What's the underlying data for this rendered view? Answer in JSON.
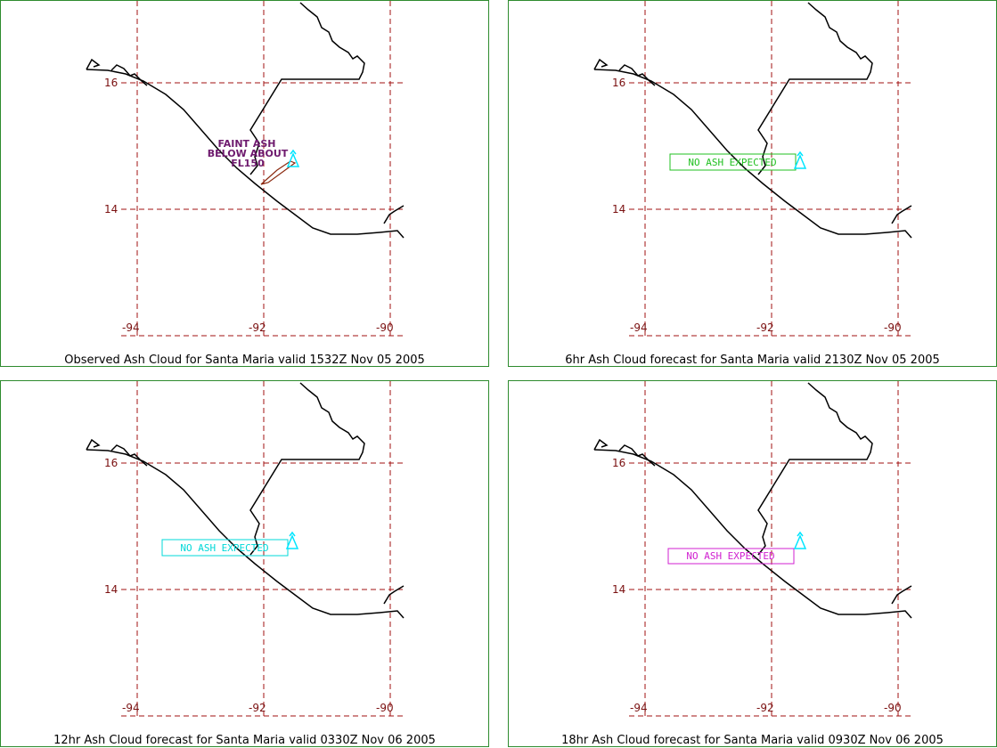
{
  "panels": [
    {
      "caption": "Observed Ash Cloud for Santa  Maria valid 1532Z Nov 05 2005",
      "annotation_lines": [
        "FAINT ASH",
        "BELOW ABOUT",
        "FL150"
      ],
      "annotation_color": "#6e1a6e",
      "volcano_color": "#00e5ff",
      "ash_polygon_color": "#8b2a10"
    },
    {
      "caption": "6hr Ash Cloud forecast for Santa  Maria valid 2130Z Nov 05 2005",
      "box_text": "NO ASH EXPECTED",
      "box_color": "#22c022",
      "volcano_color": "#00e5ff"
    },
    {
      "caption": "12hr Ash Cloud forecast for Santa  Maria valid 0330Z Nov 06 2005",
      "box_text": "NO ASH EXPECTED",
      "box_color": "#00d8d8",
      "volcano_color": "#00e5ff"
    },
    {
      "caption": "18hr Ash Cloud forecast for Santa  Maria valid 0930Z Nov 06 2005",
      "box_text": "NO ASH EXPECTED",
      "box_color": "#d020d0",
      "volcano_color": "#00e5ff"
    }
  ],
  "grid": {
    "lat_labels": [
      "16",
      "14"
    ],
    "lon_labels": [
      "-94",
      "-92",
      "-90"
    ],
    "grid_color": "#a01010"
  }
}
